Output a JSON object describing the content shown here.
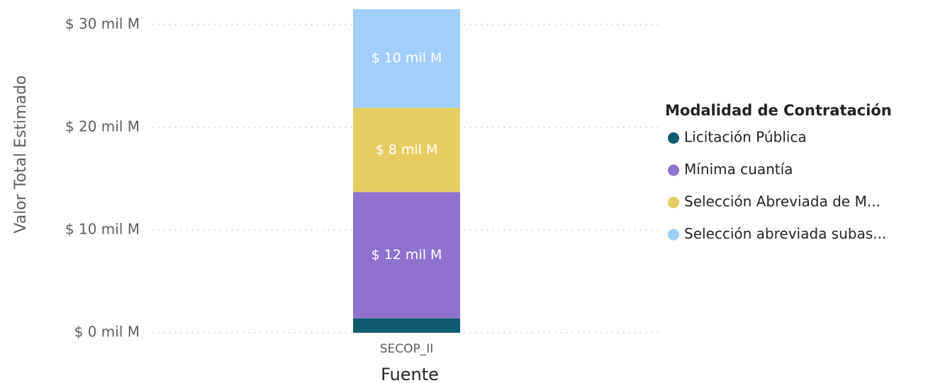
{
  "chart_data": {
    "type": "stacked_bar",
    "y_axis_label": "Valor Total Estimado",
    "x_axis_label": "Fuente",
    "categories": [
      "SECOP_II"
    ],
    "legend_title": "Modalidad de Contratación",
    "legend": "right",
    "grid": true,
    "ylim": [
      0,
      31.5
    ],
    "yticks": [
      {
        "value": 0,
        "label": "$ 0 mil M"
      },
      {
        "value": 10,
        "label": "$ 10 mil M"
      },
      {
        "value": 20,
        "label": "$ 20 mil M"
      },
      {
        "value": 30,
        "label": "$ 30 mil M"
      }
    ],
    "series": [
      {
        "name": "Licitación Pública",
        "color": "#0e5a6e",
        "values": [
          1.4
        ]
      },
      {
        "name": "Mínima cuantía",
        "color": "#8f72cf",
        "values": [
          12.3
        ],
        "value_labels": [
          "$ 12 mil M"
        ]
      },
      {
        "name": "Selección Abreviada de M...",
        "color": "#e6cd62",
        "values": [
          8.2
        ],
        "value_labels": [
          "$ 8 mil M"
        ]
      },
      {
        "name": "Selección abreviada subas...",
        "color": "#a1cffc",
        "values": [
          9.6
        ],
        "value_labels": [
          "$ 10 mil M"
        ]
      }
    ]
  }
}
